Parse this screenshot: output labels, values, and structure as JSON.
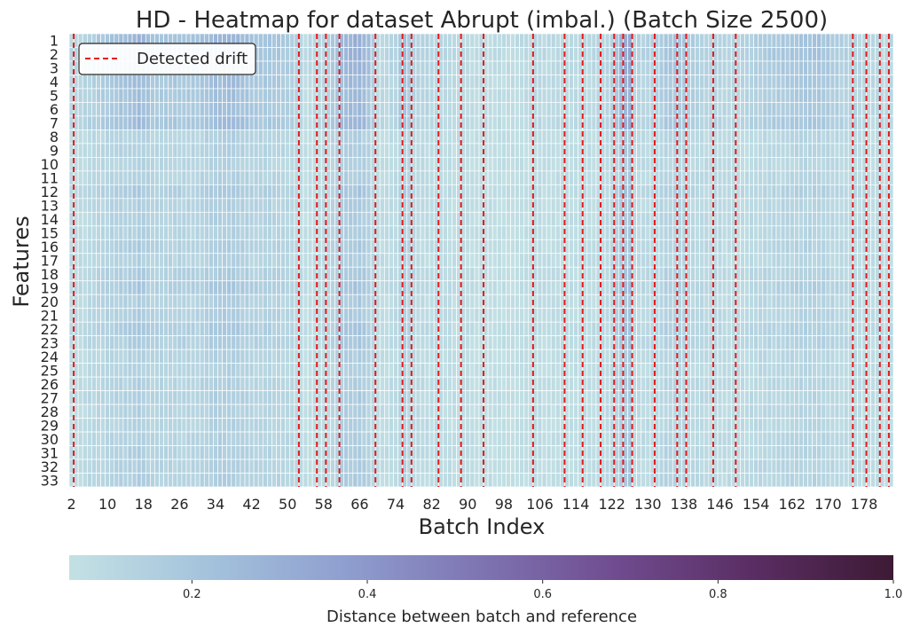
{
  "chart_data": {
    "type": "heatmap",
    "title": "HD - Heatmap for dataset Abrupt (imbal.) (Batch Size 2500)",
    "xlabel": "Batch Index",
    "ylabel": "Features",
    "x_first_batch": 2,
    "x_last_batch": 184,
    "x_tick_labels": [
      "2",
      "10",
      "18",
      "26",
      "34",
      "42",
      "50",
      "58",
      "66",
      "74",
      "82",
      "90",
      "98",
      "106",
      "114",
      "122",
      "130",
      "138",
      "146",
      "154",
      "162",
      "170",
      "178"
    ],
    "y_tick_labels": [
      "1",
      "2",
      "3",
      "4",
      "5",
      "6",
      "7",
      "8",
      "9",
      "10",
      "11",
      "12",
      "13",
      "14",
      "15",
      "16",
      "17",
      "18",
      "19",
      "20",
      "21",
      "22",
      "23",
      "24",
      "25",
      "26",
      "27",
      "28",
      "29",
      "30",
      "31",
      "32",
      "33"
    ],
    "color_range": [
      0.06,
      1.0
    ],
    "colorbar": {
      "label": "Distance between batch and reference",
      "ticks": [
        "0.2",
        "0.4",
        "0.6",
        "0.8",
        "1.0"
      ],
      "tick_values": [
        0.2,
        0.4,
        0.6,
        0.8,
        1.0
      ],
      "colors": [
        "#c3e1e4",
        "#a4c3dc",
        "#8f9fcf",
        "#7e74b2",
        "#6f4b8e",
        "#592d62",
        "#3d1a34"
      ]
    },
    "legend": {
      "label": "Detected drift",
      "color": "#e41a1c",
      "placement": "top-left"
    },
    "drift_batches": [
      3,
      53,
      57,
      59,
      62,
      70,
      76,
      78,
      84,
      89,
      94,
      105,
      112,
      116,
      120,
      123,
      125,
      127,
      132,
      137,
      139,
      145,
      150,
      176,
      179,
      182,
      184
    ],
    "feature_profile": [
      1.3,
      1.25,
      1.2,
      1.1,
      1.05,
      1.05,
      1.15,
      0.55,
      0.55,
      0.5,
      0.55,
      0.75,
      0.6,
      0.6,
      0.55,
      0.65,
      0.55,
      0.7,
      0.8,
      0.6,
      0.65,
      0.8,
      0.7,
      0.55,
      0.5,
      0.55,
      0.6,
      0.55,
      0.5,
      0.55,
      0.6,
      0.6,
      0.6
    ],
    "batch_profile_points": [
      [
        2,
        0.1
      ],
      [
        6,
        0.13
      ],
      [
        10,
        0.17
      ],
      [
        14,
        0.2
      ],
      [
        17,
        0.24
      ],
      [
        20,
        0.17
      ],
      [
        26,
        0.18
      ],
      [
        30,
        0.17
      ],
      [
        34,
        0.22
      ],
      [
        38,
        0.23
      ],
      [
        42,
        0.18
      ],
      [
        48,
        0.17
      ],
      [
        52,
        0.13
      ],
      [
        54,
        0.09
      ],
      [
        58,
        0.1
      ],
      [
        62,
        0.22
      ],
      [
        66,
        0.26
      ],
      [
        68,
        0.2
      ],
      [
        70,
        0.09
      ],
      [
        74,
        0.12
      ],
      [
        76,
        0.2
      ],
      [
        78,
        0.13
      ],
      [
        84,
        0.1
      ],
      [
        90,
        0.09
      ],
      [
        100,
        0.08
      ],
      [
        106,
        0.1
      ],
      [
        112,
        0.09
      ],
      [
        118,
        0.1
      ],
      [
        122,
        0.12
      ],
      [
        124,
        0.24
      ],
      [
        126,
        0.28
      ],
      [
        127,
        0.12
      ],
      [
        132,
        0.13
      ],
      [
        134,
        0.18
      ],
      [
        138,
        0.16
      ],
      [
        142,
        0.13
      ],
      [
        150,
        0.11
      ],
      [
        156,
        0.15
      ],
      [
        162,
        0.17
      ],
      [
        168,
        0.18
      ],
      [
        174,
        0.13
      ],
      [
        178,
        0.1
      ],
      [
        184,
        0.1
      ]
    ]
  }
}
